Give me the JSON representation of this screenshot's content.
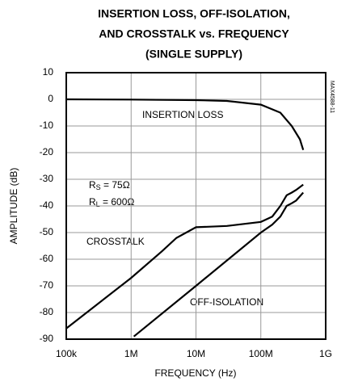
{
  "chart_data": {
    "type": "line",
    "title": [
      "INSERTION LOSS, OFF-ISOLATION,",
      "AND CROSSTALK vs. FREQUENCY",
      "(SINGLE SUPPLY)"
    ],
    "xlabel": "FREQUENCY (Hz)",
    "ylabel": "AMPLITUDE (dB)",
    "xscale": "log",
    "grid": true,
    "xlim": [
      100000,
      1000000000
    ],
    "xticks": [
      {
        "value": 100000,
        "label": "100k"
      },
      {
        "value": 1000000,
        "label": "1M"
      },
      {
        "value": 10000000,
        "label": "10M"
      },
      {
        "value": 100000000,
        "label": "100M"
      },
      {
        "value": 1000000000,
        "label": "1G"
      }
    ],
    "ylim": [
      -90,
      10
    ],
    "yticks": [
      10,
      0,
      -10,
      -20,
      -30,
      -40,
      -50,
      -60,
      -70,
      -80,
      -90
    ],
    "series": [
      {
        "name": "INSERTION LOSS",
        "color": "#000000",
        "x": [
          100000,
          1000000,
          10000000,
          30000000,
          100000000,
          200000000,
          300000000,
          400000000,
          450000000
        ],
        "values": [
          0,
          -0.1,
          -0.3,
          -0.6,
          -2,
          -5,
          -10,
          -15,
          -19
        ]
      },
      {
        "name": "CROSSTALK",
        "color": "#000000",
        "x": [
          100000,
          1000000,
          3000000,
          5000000,
          10000000,
          30000000,
          100000000,
          150000000,
          200000000,
          250000000,
          300000000,
          350000000,
          450000000
        ],
        "values": [
          -86,
          -67,
          -57,
          -52,
          -48,
          -47.5,
          -46,
          -44,
          -40,
          -36,
          -35,
          -34,
          -32
        ]
      },
      {
        "name": "OFF-ISOLATION",
        "color": "#000000",
        "x": [
          1100000,
          10000000,
          100000000,
          150000000,
          200000000,
          250000000,
          300000000,
          350000000,
          450000000
        ],
        "values": [
          -89,
          -70,
          -50,
          -47,
          -44,
          -40,
          -39,
          -38,
          -35
        ]
      }
    ],
    "annotations": [
      {
        "base": "R",
        "sub": "S",
        "tail": " = 75Ω"
      },
      {
        "base": "R",
        "sub": "L",
        "tail": " = 600Ω"
      }
    ],
    "figure_id": "MAX4588-11"
  }
}
